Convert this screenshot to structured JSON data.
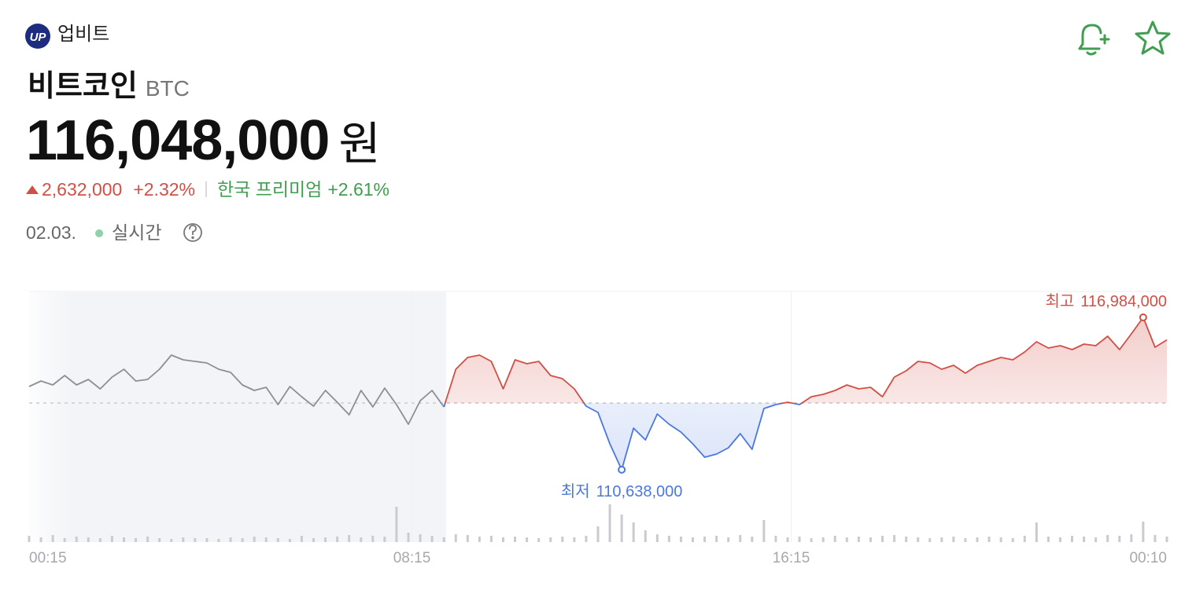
{
  "header": {
    "logo": "UP",
    "brand": "업비트",
    "name": "비트코인",
    "symbol": "BTC",
    "price": "116,048,000",
    "unit": "원",
    "change": "2,632,000",
    "change_pct": "+2.32%",
    "premium_label": "한국 프리미엄",
    "premium": "+2.61%",
    "date": "02.03.",
    "status": "실시간"
  },
  "chart_data": {
    "type": "line",
    "values": [
      114103000,
      114333000,
      114169000,
      114562000,
      114169000,
      114398000,
      114005000,
      114496000,
      114824000,
      114333000,
      114398000,
      114824000,
      115413000,
      115216000,
      115151000,
      115085000,
      114824000,
      114693000,
      114169000,
      113940000,
      114071000,
      113351000,
      114103000,
      113678000,
      113285000,
      113940000,
      113449000,
      112925000,
      113940000,
      113252000,
      114038000,
      113351000,
      112532000,
      113514000,
      113940000,
      113252000,
      114824000,
      115315000,
      115413000,
      115151000,
      114005000,
      115216000,
      115053000,
      115151000,
      114562000,
      114431000,
      114005000,
      113285000,
      113023000,
      111714000,
      110638000,
      112369000,
      111878000,
      112958000,
      112532000,
      112205000,
      111714000,
      111157000,
      111288000,
      111550000,
      112139000,
      111485000,
      113187000,
      113351000,
      113449000,
      113351000,
      113678000,
      113776000,
      113940000,
      114169000,
      114005000,
      114071000,
      113678000,
      114496000,
      114758000,
      115151000,
      115085000,
      114824000,
      114987000,
      114660000,
      114987000,
      115151000,
      115315000,
      115216000,
      115544000,
      115969000,
      115707000,
      115806000,
      115642000,
      115871000,
      115806000,
      116198000,
      115642000,
      116297000,
      116984000,
      115740000,
      116048000
    ],
    "volume": [
      8,
      6,
      9,
      5,
      7,
      6,
      5,
      8,
      6,
      5,
      7,
      5,
      4,
      6,
      5,
      5,
      4,
      6,
      5,
      7,
      6,
      5,
      4,
      8,
      5,
      6,
      7,
      9,
      6,
      8,
      7,
      45,
      12,
      10,
      8,
      6,
      10,
      9,
      7,
      8,
      6,
      7,
      6,
      5,
      6,
      7,
      6,
      8,
      20,
      48,
      35,
      25,
      15,
      10,
      8,
      7,
      6,
      7,
      8,
      6,
      9,
      7,
      28,
      8,
      6,
      7,
      5,
      6,
      8,
      6,
      7,
      6,
      8,
      9,
      7,
      6,
      5,
      6,
      7,
      5,
      6,
      7,
      6,
      5,
      8,
      25,
      7,
      6,
      8,
      7,
      6,
      9,
      8,
      10,
      26,
      9,
      7
    ],
    "volume_lim": [
      0,
      100
    ],
    "xlim": [
      0,
      96
    ],
    "xticks": [
      {
        "value": 0,
        "label": "00:15"
      },
      {
        "value": 32.3,
        "label": "08:15"
      },
      {
        "value": 64.3,
        "label": "16:15"
      },
      {
        "value": 96,
        "label": "00:10"
      }
    ],
    "ylim": [
      107622000,
      118064000
    ],
    "baseline": 113416000,
    "shade_until": 35.2,
    "colors": {
      "up": "#d24f45",
      "down": "#4a78e0",
      "before": "#8c8f96",
      "volume": "#c9cbd0"
    },
    "annotations": {
      "high_label": "최고",
      "high_value": "116,984,000",
      "low_label": "최저",
      "low_value": "110,638,000"
    }
  }
}
